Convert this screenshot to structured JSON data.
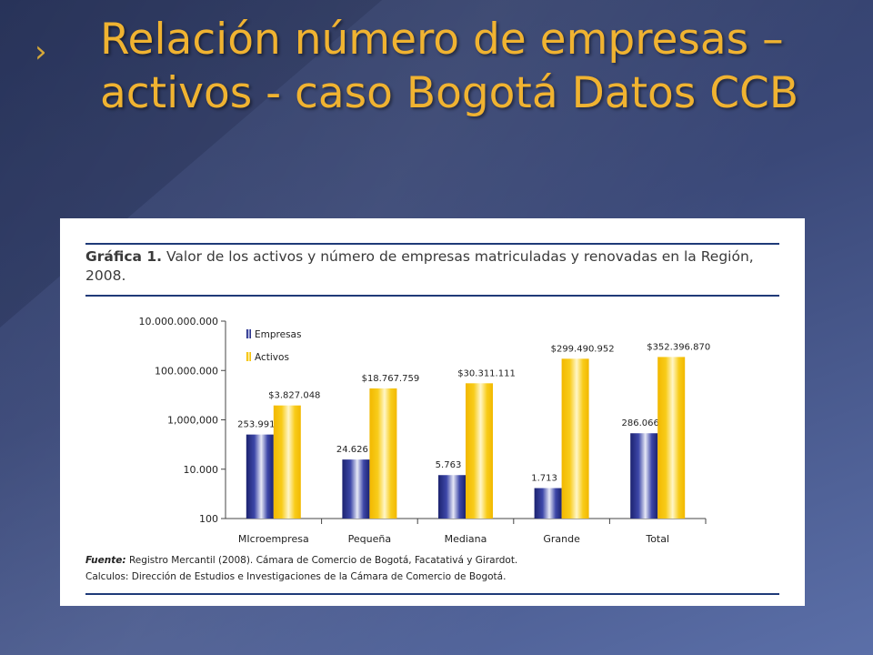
{
  "slide": {
    "title": "Relación número de empresas – activos - caso Bogotá Datos CCB",
    "accent_color": "#f0b331",
    "bullet_icon": "chevron-right-icon"
  },
  "figure": {
    "label": "Gráfica 1.",
    "caption": "Valor de los activos y número de empresas matriculadas y renovadas en la Región, 2008.",
    "source_label": "Fuente:",
    "source": "Registro Mercantil (2008). Cámara de Comercio de Bogotá, Facatativá y Girardot.",
    "calc": "Calculos: Dirección de Estudios e Investigaciones de la Cámara de Comercio de Bogotá."
  },
  "chart_data": {
    "type": "bar",
    "scale": "log",
    "categories": [
      "MIcroempresa",
      "Pequeña",
      "Mediana",
      "Grande",
      "Total"
    ],
    "series": [
      {
        "name": "Empresas",
        "color": "#232a7a",
        "values": [
          253991,
          24626,
          5763,
          1713,
          286066
        ],
        "labels": [
          "253.991",
          "24.626",
          "5.763",
          "1.713",
          "286.066"
        ]
      },
      {
        "name": "Activos",
        "color": "#f6c300",
        "values": [
          3827048,
          18767759,
          30311111,
          299490952,
          352396870
        ],
        "labels": [
          "$3.827.048",
          "$18.767.759",
          "$30.311.111",
          "$299.490.952",
          "$352.396.870"
        ]
      }
    ],
    "yticks": [
      100,
      10000,
      1000000,
      100000000,
      10000000000
    ],
    "ytick_labels": [
      "100",
      "10.000",
      "1,000,000",
      "100.000.000",
      "10.000.000.000"
    ],
    "ylim": [
      100,
      10000000000
    ],
    "legend": "top-left",
    "grid": false
  }
}
